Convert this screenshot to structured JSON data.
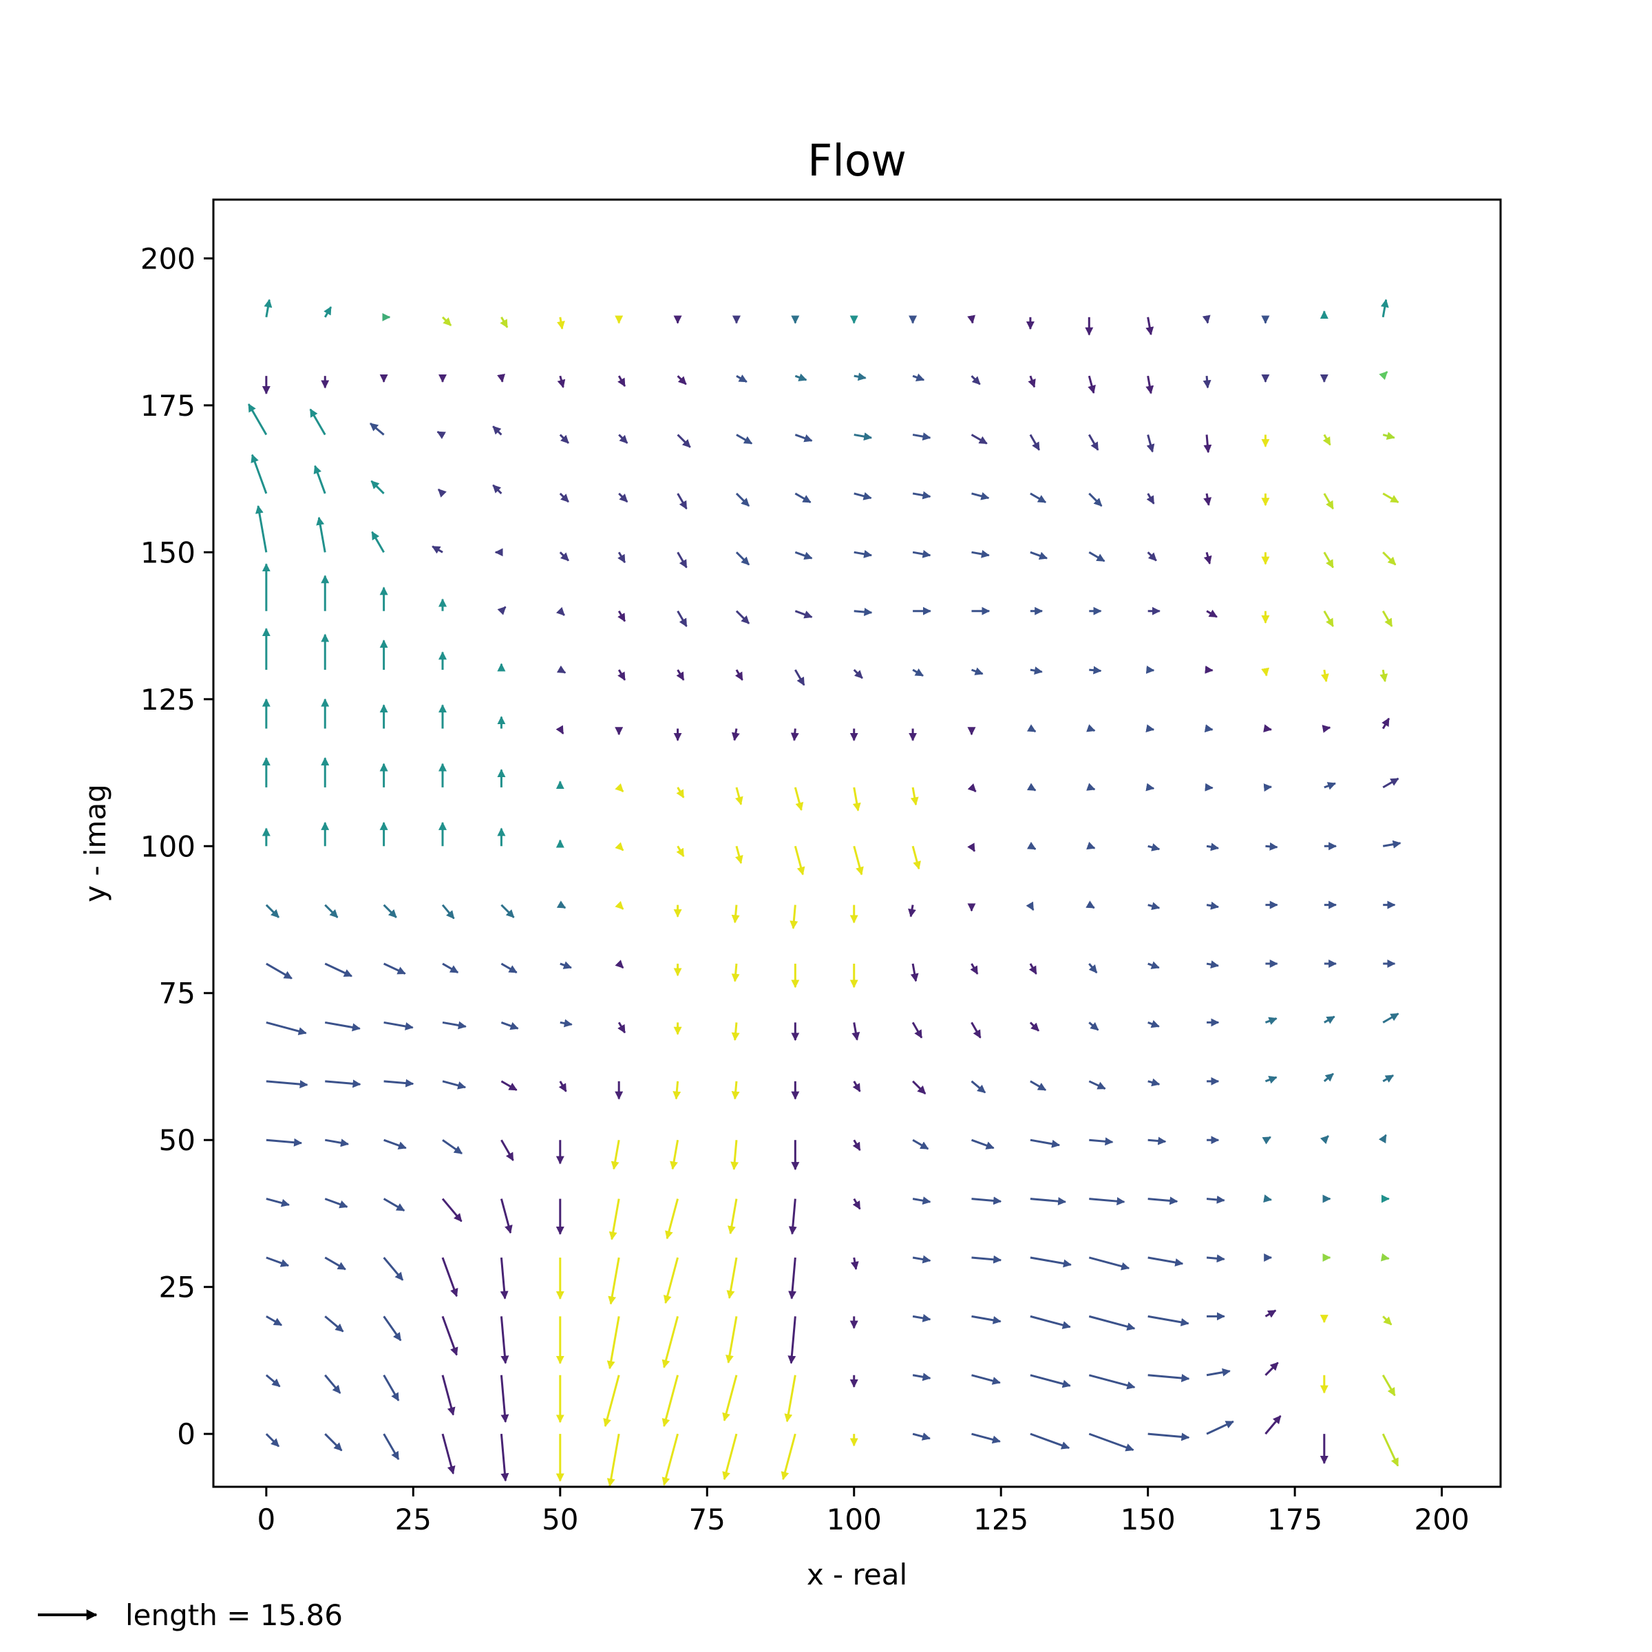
{
  "chart_data": {
    "type": "quiver",
    "title": "Flow",
    "xlabel": "x - real",
    "ylabel": "y - imag",
    "xlim": [
      -9,
      210
    ],
    "ylim": [
      -9,
      210
    ],
    "xticks": [
      0,
      25,
      50,
      75,
      100,
      125,
      150,
      175,
      200
    ],
    "yticks": [
      0,
      25,
      50,
      75,
      100,
      125,
      150,
      175,
      200
    ],
    "grid": false,
    "colormap": "viridis",
    "key": {
      "label": "length = 15.86",
      "length": 15.86
    },
    "x": [
      0,
      10,
      20,
      30,
      40,
      50,
      60,
      70,
      80,
      90,
      100,
      110,
      120,
      130,
      140,
      150,
      160,
      170,
      180,
      190
    ],
    "y": [
      0,
      10,
      20,
      30,
      40,
      50,
      60,
      70,
      80,
      90,
      100,
      110,
      120,
      130,
      140,
      150,
      160,
      170,
      180,
      190
    ],
    "angles": [
      [
        -45,
        -45,
        -60,
        -75,
        -85,
        -90,
        -100,
        -105,
        -105,
        -105,
        -90,
        -15,
        -15,
        -20,
        -20,
        -5,
        25,
        50,
        -90,
        -65
      ],
      [
        -40,
        -50,
        -60,
        -75,
        -85,
        -90,
        -105,
        -105,
        -105,
        -100,
        -90,
        -10,
        -15,
        -15,
        -15,
        -5,
        10,
        45,
        -90,
        -60
      ],
      [
        -30,
        -40,
        -55,
        -70,
        -85,
        -90,
        -100,
        -105,
        -100,
        -95,
        -90,
        -10,
        -10,
        -15,
        -15,
        -10,
        0,
        30,
        -90,
        -45
      ],
      [
        -20,
        -30,
        -50,
        -70,
        -85,
        -90,
        -100,
        -105,
        -100,
        -95,
        -80,
        -10,
        -5,
        -10,
        -15,
        -10,
        -5,
        0,
        0,
        -10
      ],
      [
        -15,
        -20,
        -30,
        -50,
        -75,
        -90,
        -100,
        -105,
        -100,
        -95,
        -60,
        -10,
        -5,
        -5,
        -5,
        -5,
        -5,
        -10,
        0,
        0
      ],
      [
        -5,
        -10,
        -20,
        -35,
        -60,
        -90,
        -100,
        -100,
        -95,
        -90,
        -60,
        -30,
        -20,
        -10,
        -5,
        -5,
        0,
        30,
        45,
        60
      ],
      [
        -5,
        -5,
        -5,
        -15,
        -30,
        -60,
        -90,
        -95,
        -95,
        -90,
        -60,
        -45,
        -40,
        -30,
        -25,
        -15,
        0,
        20,
        40,
        30
      ],
      [
        -15,
        -10,
        -10,
        -10,
        -20,
        -10,
        -60,
        -90,
        -95,
        -90,
        -80,
        -60,
        -60,
        -45,
        -40,
        -20,
        0,
        20,
        30,
        30
      ],
      [
        -30,
        -25,
        -25,
        -30,
        -30,
        -20,
        -45,
        -90,
        -95,
        -90,
        -90,
        -80,
        -60,
        -60,
        -50,
        -20,
        -10,
        0,
        0,
        0
      ],
      [
        -45,
        -45,
        -45,
        -50,
        -45,
        -30,
        -45,
        -90,
        -95,
        -95,
        -90,
        -100,
        -90,
        -60,
        -30,
        -15,
        -10,
        0,
        0,
        0
      ],
      [
        90,
        90,
        90,
        90,
        90,
        90,
        -45,
        -60,
        -75,
        -75,
        -75,
        -75,
        -60,
        -30,
        -20,
        -15,
        -10,
        -5,
        0,
        10
      ],
      [
        90,
        90,
        90,
        90,
        90,
        90,
        -45,
        -60,
        -75,
        -75,
        -80,
        -80,
        -45,
        -30,
        -20,
        -10,
        -5,
        5,
        20,
        30
      ],
      [
        90,
        90,
        90,
        90,
        90,
        -60,
        -90,
        -90,
        -100,
        -95,
        -90,
        -90,
        -90,
        -30,
        -20,
        -10,
        -10,
        -10,
        10,
        60
      ],
      [
        90,
        90,
        90,
        90,
        90,
        -30,
        -60,
        -60,
        -60,
        -60,
        -45,
        -30,
        -20,
        -10,
        -5,
        -5,
        -5,
        -80,
        -80,
        -80
      ],
      [
        90,
        90,
        90,
        90,
        45,
        -45,
        -60,
        -60,
        -45,
        -20,
        -5,
        0,
        0,
        0,
        0,
        0,
        -30,
        -90,
        -60,
        -60
      ],
      [
        100,
        100,
        120,
        150,
        180,
        -45,
        -60,
        -60,
        -45,
        -20,
        -10,
        -10,
        -10,
        -20,
        -30,
        -45,
        -75,
        -90,
        -60,
        -45
      ],
      [
        110,
        110,
        135,
        135,
        135,
        -45,
        -45,
        -60,
        -45,
        -30,
        -15,
        -10,
        -15,
        -30,
        -45,
        -60,
        -80,
        -90,
        -60,
        -30
      ],
      [
        120,
        120,
        140,
        150,
        135,
        -45,
        -45,
        -45,
        -30,
        -20,
        -10,
        -10,
        -30,
        -60,
        -60,
        -75,
        -85,
        -90,
        -60,
        -15
      ],
      [
        -90,
        -90,
        -90,
        -90,
        -80,
        -75,
        -60,
        -45,
        -30,
        -20,
        -10,
        -20,
        -45,
        -70,
        -75,
        -80,
        -85,
        -90,
        -90,
        45
      ],
      [
        80,
        60,
        0,
        -45,
        -60,
        -80,
        -90,
        -90,
        -90,
        -90,
        -90,
        -90,
        -80,
        -90,
        -90,
        -80,
        -80,
        -90,
        90,
        80
      ]
    ],
    "lengths": [
      [
        3,
        4,
        5,
        7,
        8,
        8,
        9,
        9,
        8,
        8,
        2,
        3,
        5,
        7,
        8,
        7,
        5,
        4,
        5,
        6
      ],
      [
        3,
        4,
        5,
        7,
        8,
        8,
        9,
        9,
        8,
        8,
        2,
        3,
        5,
        7,
        8,
        7,
        4,
        3,
        3,
        4
      ],
      [
        3,
        4,
        5,
        7,
        8,
        8,
        9,
        9,
        8,
        8,
        2,
        3,
        5,
        7,
        8,
        7,
        3,
        2,
        1,
        2
      ],
      [
        4,
        4,
        5,
        7,
        7,
        7,
        8,
        8,
        7,
        7,
        2,
        3,
        5,
        7,
        7,
        6,
        3,
        1,
        1,
        1
      ],
      [
        4,
        4,
        4,
        5,
        6,
        6,
        7,
        7,
        6,
        6,
        2,
        3,
        5,
        6,
        6,
        5,
        3,
        1,
        1,
        1
      ],
      [
        6,
        4,
        4,
        4,
        4,
        4,
        5,
        5,
        5,
        5,
        2,
        3,
        4,
        5,
        4,
        3,
        2,
        1,
        1,
        1
      ],
      [
        7,
        6,
        5,
        4,
        3,
        2,
        3,
        3,
        3,
        3,
        2,
        3,
        3,
        3,
        3,
        2,
        2,
        2,
        2,
        2
      ],
      [
        7,
        6,
        5,
        4,
        3,
        2,
        2,
        2,
        3,
        3,
        3,
        3,
        3,
        2,
        2,
        2,
        2,
        2,
        2,
        3
      ],
      [
        5,
        5,
        4,
        3,
        3,
        2,
        1,
        2,
        3,
        4,
        4,
        3,
        2,
        2,
        2,
        2,
        2,
        2,
        2,
        2
      ],
      [
        3,
        3,
        3,
        3,
        3,
        1,
        1,
        2,
        3,
        4,
        3,
        2,
        1,
        1,
        1,
        2,
        2,
        2,
        2,
        2
      ],
      [
        3,
        4,
        4,
        4,
        3,
        1,
        1,
        2,
        3,
        5,
        5,
        4,
        1,
        1,
        1,
        2,
        2,
        2,
        2,
        3
      ],
      [
        5,
        5,
        4,
        4,
        3,
        1,
        1,
        2,
        3,
        4,
        4,
        3,
        1,
        1,
        1,
        1,
        1,
        1,
        2,
        3
      ],
      [
        5,
        5,
        4,
        4,
        2,
        1,
        1,
        2,
        2,
        2,
        2,
        2,
        1,
        1,
        1,
        1,
        1,
        1,
        1,
        2
      ],
      [
        7,
        6,
        5,
        3,
        1,
        1,
        2,
        2,
        2,
        3,
        2,
        2,
        2,
        2,
        2,
        1,
        1,
        1,
        2,
        2
      ],
      [
        8,
        6,
        4,
        2,
        1,
        1,
        2,
        3,
        3,
        3,
        3,
        3,
        3,
        2,
        2,
        2,
        2,
        2,
        3,
        3
      ],
      [
        8,
        6,
        4,
        2,
        1,
        2,
        2,
        3,
        3,
        3,
        3,
        3,
        3,
        3,
        3,
        2,
        2,
        2,
        3,
        3
      ],
      [
        7,
        5,
        3,
        1,
        2,
        2,
        2,
        3,
        3,
        3,
        3,
        3,
        3,
        3,
        3,
        2,
        2,
        2,
        3,
        3
      ],
      [
        6,
        5,
        3,
        1,
        2,
        2,
        2,
        3,
        3,
        3,
        3,
        3,
        3,
        3,
        3,
        3,
        3,
        2,
        2,
        2
      ],
      [
        3,
        2,
        1,
        1,
        1,
        2,
        2,
        2,
        2,
        2,
        2,
        2,
        2,
        2,
        3,
        3,
        2,
        1,
        1,
        1
      ],
      [
        3,
        2,
        1,
        2,
        2,
        2,
        1,
        1,
        1,
        1,
        1,
        1,
        1,
        2,
        3,
        3,
        1,
        1,
        1,
        3
      ]
    ],
    "colors": [
      [
        0.3,
        0.3,
        0.3,
        0.1,
        0.1,
        1,
        1,
        1,
        1,
        1,
        1,
        0.3,
        0.3,
        0.3,
        0.3,
        0.3,
        0.3,
        0.1,
        0.1,
        0.9
      ],
      [
        0.3,
        0.3,
        0.3,
        0.1,
        0.1,
        1,
        1,
        1,
        1,
        1,
        0.1,
        0.3,
        0.3,
        0.3,
        0.3,
        0.3,
        0.3,
        0.1,
        1,
        0.9
      ],
      [
        0.3,
        0.3,
        0.3,
        0.1,
        0.1,
        1,
        1,
        1,
        1,
        0.1,
        0.1,
        0.3,
        0.3,
        0.3,
        0.3,
        0.3,
        0.3,
        0.1,
        1,
        0.9
      ],
      [
        0.3,
        0.3,
        0.3,
        0.1,
        0.1,
        1,
        1,
        1,
        1,
        0.1,
        0.1,
        0.3,
        0.3,
        0.3,
        0.3,
        0.3,
        0.3,
        0.3,
        0.8,
        0.8
      ],
      [
        0.3,
        0.3,
        0.3,
        0.1,
        0.1,
        0.1,
        1,
        1,
        1,
        0.1,
        0.1,
        0.3,
        0.3,
        0.3,
        0.3,
        0.3,
        0.3,
        0.4,
        0.4,
        0.5
      ],
      [
        0.3,
        0.3,
        0.3,
        0.3,
        0.1,
        0.1,
        1,
        1,
        1,
        0.1,
        0.1,
        0.3,
        0.3,
        0.3,
        0.3,
        0.3,
        0.3,
        0.4,
        0.4,
        0.4
      ],
      [
        0.3,
        0.3,
        0.3,
        0.3,
        0.1,
        0.1,
        0.1,
        1,
        1,
        0.1,
        0.1,
        0.1,
        0.3,
        0.3,
        0.3,
        0.3,
        0.3,
        0.4,
        0.4,
        0.4
      ],
      [
        0.3,
        0.3,
        0.3,
        0.3,
        0.3,
        0.3,
        0.1,
        1,
        1,
        0.1,
        0.1,
        0.1,
        0.1,
        0.1,
        0.3,
        0.3,
        0.3,
        0.4,
        0.4,
        0.4
      ],
      [
        0.3,
        0.3,
        0.3,
        0.3,
        0.3,
        0.3,
        0.1,
        1,
        1,
        1,
        1,
        0.1,
        0.1,
        0.1,
        0.3,
        0.3,
        0.3,
        0.3,
        0.3,
        0.3
      ],
      [
        0.4,
        0.4,
        0.4,
        0.4,
        0.4,
        0.4,
        1,
        1,
        1,
        1,
        1,
        0.1,
        0.1,
        0.3,
        0.3,
        0.3,
        0.3,
        0.3,
        0.3,
        0.3
      ],
      [
        0.5,
        0.5,
        0.5,
        0.5,
        0.5,
        0.5,
        1,
        1,
        1,
        1,
        1,
        1,
        0.1,
        0.3,
        0.3,
        0.3,
        0.3,
        0.3,
        0.3,
        0.3
      ],
      [
        0.5,
        0.5,
        0.5,
        0.5,
        0.5,
        0.5,
        1,
        1,
        1,
        1,
        1,
        1,
        0.1,
        0.3,
        0.3,
        0.3,
        0.3,
        0.3,
        0.3,
        0.2
      ],
      [
        0.5,
        0.5,
        0.5,
        0.5,
        0.5,
        0.1,
        0.1,
        0.1,
        0.1,
        0.1,
        0.1,
        0.1,
        0.1,
        0.3,
        0.3,
        0.3,
        0.3,
        0.1,
        0.1,
        0.1
      ],
      [
        0.5,
        0.5,
        0.5,
        0.5,
        0.5,
        0.2,
        0.1,
        0.1,
        0.1,
        0.2,
        0.2,
        0.3,
        0.3,
        0.3,
        0.3,
        0.3,
        0.1,
        1,
        1,
        0.9
      ],
      [
        0.5,
        0.5,
        0.5,
        0.5,
        0.2,
        0.2,
        0.1,
        0.2,
        0.2,
        0.2,
        0.3,
        0.3,
        0.3,
        0.3,
        0.3,
        0.2,
        0.1,
        1,
        0.9,
        0.9
      ],
      [
        0.5,
        0.5,
        0.5,
        0.2,
        0.2,
        0.2,
        0.2,
        0.2,
        0.3,
        0.3,
        0.3,
        0.3,
        0.3,
        0.3,
        0.3,
        0.2,
        0.1,
        1,
        0.9,
        0.9
      ],
      [
        0.5,
        0.5,
        0.5,
        0.2,
        0.2,
        0.2,
        0.2,
        0.2,
        0.3,
        0.3,
        0.3,
        0.3,
        0.3,
        0.3,
        0.3,
        0.2,
        0.1,
        1,
        0.9,
        0.9
      ],
      [
        0.5,
        0.5,
        0.3,
        0.2,
        0.2,
        0.2,
        0.2,
        0.2,
        0.3,
        0.3,
        0.4,
        0.3,
        0.2,
        0.2,
        0.2,
        0.2,
        0.1,
        1,
        0.9,
        0.85
      ],
      [
        0.1,
        0.1,
        0.1,
        0.1,
        0.1,
        0.1,
        0.1,
        0.1,
        0.3,
        0.4,
        0.4,
        0.3,
        0.2,
        0.1,
        0.1,
        0.1,
        0.2,
        0.2,
        0.2,
        0.7
      ],
      [
        0.5,
        0.5,
        0.6,
        0.9,
        0.9,
        1,
        1,
        0.1,
        0.2,
        0.4,
        0.5,
        0.3,
        0.1,
        0.1,
        0.1,
        0.1,
        0.2,
        0.3,
        0.5,
        0.5
      ]
    ]
  }
}
